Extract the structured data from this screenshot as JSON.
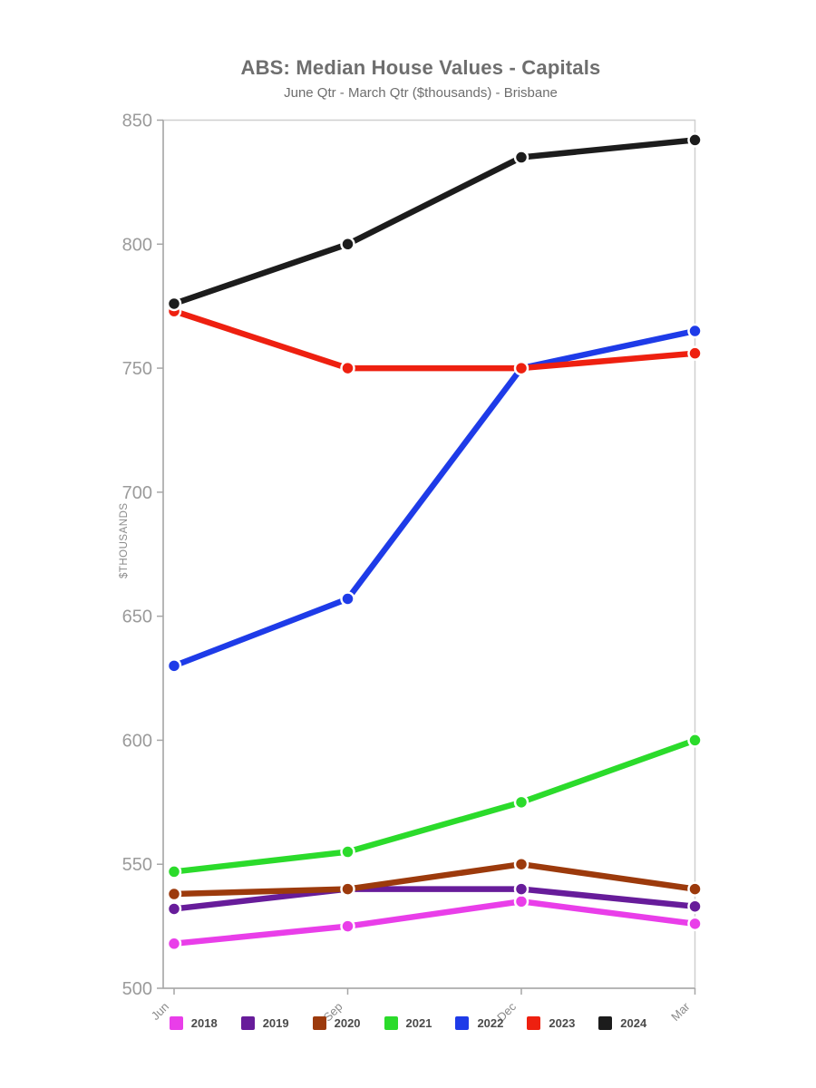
{
  "chart": {
    "title": "ABS: Median House Values - Capitals",
    "subtitle": "June Qtr - March Qtr ($thousands) - Brisbane"
  },
  "chart_data": {
    "type": "line",
    "title": "ABS: Median House Values - Capitals",
    "subtitle": "June Qtr - March Qtr ($thousands) - Brisbane",
    "xlabel": "",
    "ylabel": "$THOUSANDS",
    "categories": [
      "Jun",
      "Sep",
      "Dec",
      "Mar"
    ],
    "series": [
      {
        "name": "2018",
        "color": "#E93EE9",
        "values": [
          518,
          525,
          535,
          526
        ]
      },
      {
        "name": "2019",
        "color": "#671C9A",
        "values": [
          532,
          540,
          540,
          533
        ]
      },
      {
        "name": "2020",
        "color": "#9C3A0C",
        "values": [
          538,
          540,
          550,
          540
        ]
      },
      {
        "name": "2021",
        "color": "#2BDB2B",
        "values": [
          547,
          555,
          575,
          600
        ]
      },
      {
        "name": "2022",
        "color": "#1E3BE8",
        "values": [
          630,
          657,
          750,
          765
        ]
      },
      {
        "name": "2023",
        "color": "#EE2010",
        "values": [
          773,
          750,
          750,
          756
        ]
      },
      {
        "name": "2024",
        "color": "#1C1C1C",
        "values": [
          776,
          800,
          835,
          842
        ]
      }
    ],
    "ylim": [
      500,
      850
    ],
    "yticks": [
      500,
      550,
      600,
      650,
      700,
      750,
      800,
      850
    ],
    "grid": false,
    "legend_position": "bottom",
    "colors": {
      "title_text": "#6E6E6E",
      "axis_line": "#A6A6A6",
      "plot_border": "#CFCFCF",
      "ytick_label": "#9B9B9B",
      "xtick_label": "#8A8A8A",
      "ylabel_text": "#8A8A8A",
      "legend_text": "#4A4A4A",
      "marker_ring": "#FFFFFF",
      "background": "#FFFFFF"
    }
  }
}
